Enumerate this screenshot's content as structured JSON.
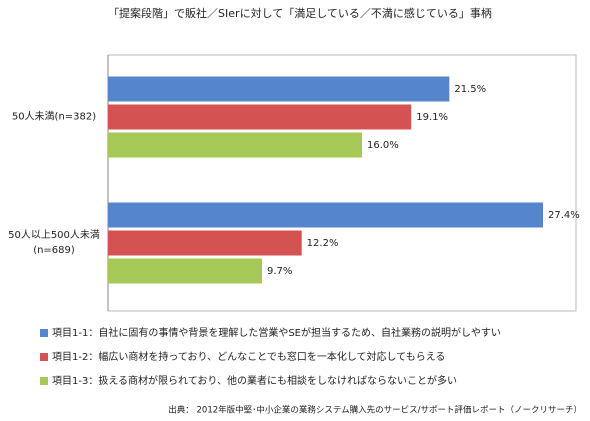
{
  "chart_data": {
    "type": "hbar",
    "title": "「提案段階」で販社／SIerに対して「満足している／不満に感じている」事柄",
    "categories": [
      "50人未満(n=382)",
      "50人以上500人未満\n(n=689)"
    ],
    "series": [
      {
        "name": "項目1-1：自社に固有の事情や背景を理解した営業やSEが担当するため、自社業務の説明がしやすい",
        "color": "#5585cc",
        "values": [
          21.5,
          27.4
        ],
        "value_labels": [
          "21.5%",
          "27.4%"
        ]
      },
      {
        "name": "項目1-2：幅広い商材を持っており、どんなことでも窓口を一本化して対応してもらえる",
        "color": "#d45352",
        "values": [
          19.1,
          12.2
        ],
        "value_labels": [
          "19.1%",
          "12.2%"
        ]
      },
      {
        "name": "項目1-3：扱える商材が限られており、他の業者にも相談をしなければならないことが多い",
        "color": "#a5c856",
        "values": [
          16.0,
          9.7
        ],
        "value_labels": [
          "16.0%",
          "9.7%"
        ]
      }
    ],
    "source": "出典： 2012年版中堅･中小企業の業務システム購入先のサービス/サポート評価レポート（ノークリサーチ）"
  }
}
